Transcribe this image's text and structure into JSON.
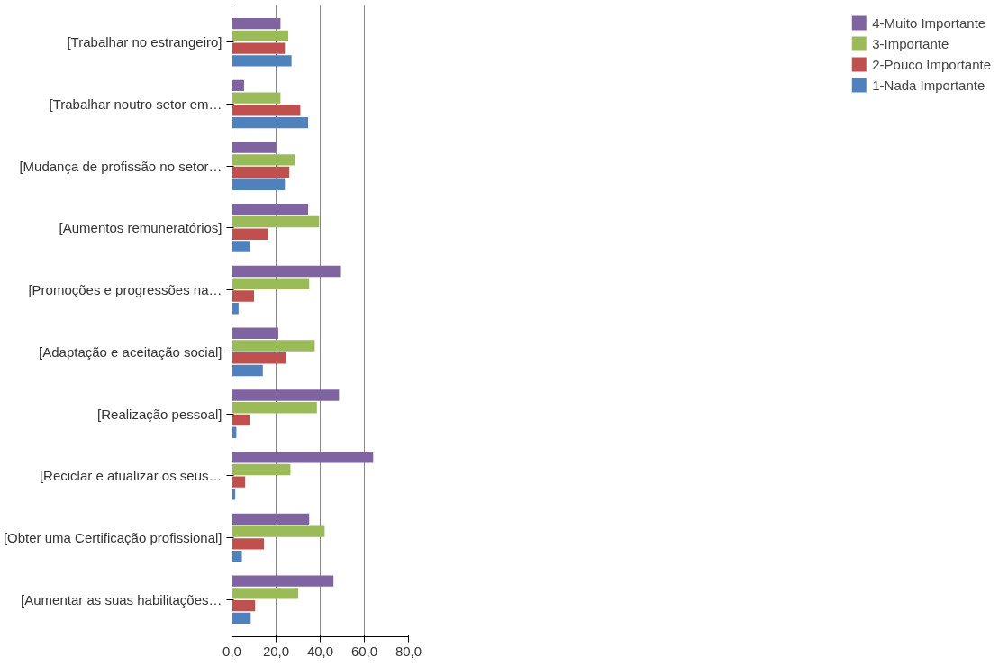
{
  "chart_data": {
    "type": "bar",
    "orientation": "horizontal",
    "categories": [
      "[Trabalhar no estrangeiro]",
      "[Trabalhar noutro setor em…",
      "[Mudança de profissão no setor…",
      "[Aumentos remuneratórios]",
      "[Promoções e progressões na…",
      "[Adaptação e aceitação social]",
      "[Realização pessoal]",
      "[Reciclar e atualizar os seus…",
      "[Obter uma Certificação profissional]",
      "[Aumentar as suas habilitações…"
    ],
    "series": [
      {
        "name": "4-Muito Importante",
        "color": "#8064a2",
        "values": [
          22,
          5.5,
          20,
          34.5,
          49,
          21,
          48.5,
          64,
          35,
          46
        ]
      },
      {
        "name": "3-Importante",
        "color": "#9bbb59",
        "values": [
          25.5,
          22,
          28.5,
          39.5,
          35,
          37.5,
          38.5,
          26.5,
          42,
          30
        ]
      },
      {
        "name": "2-Pouco Importante",
        "color": "#c0504d",
        "values": [
          24,
          31,
          26,
          16.5,
          10,
          24.5,
          8,
          6,
          14.5,
          10.5
        ]
      },
      {
        "name": "1-Nada Importante",
        "color": "#4f81bd",
        "values": [
          27,
          34.5,
          24,
          8,
          3,
          14,
          2,
          1.5,
          4.5,
          8.5
        ]
      }
    ],
    "xlim": [
      0,
      80
    ],
    "xticks": [
      {
        "value": 0,
        "label": "0,0"
      },
      {
        "value": 20,
        "label": "20,0"
      },
      {
        "value": 40,
        "label": "40,0"
      },
      {
        "value": 60,
        "label": "60,0"
      },
      {
        "value": 80,
        "label": "80,0"
      }
    ],
    "grid": "x",
    "legend": "right"
  }
}
